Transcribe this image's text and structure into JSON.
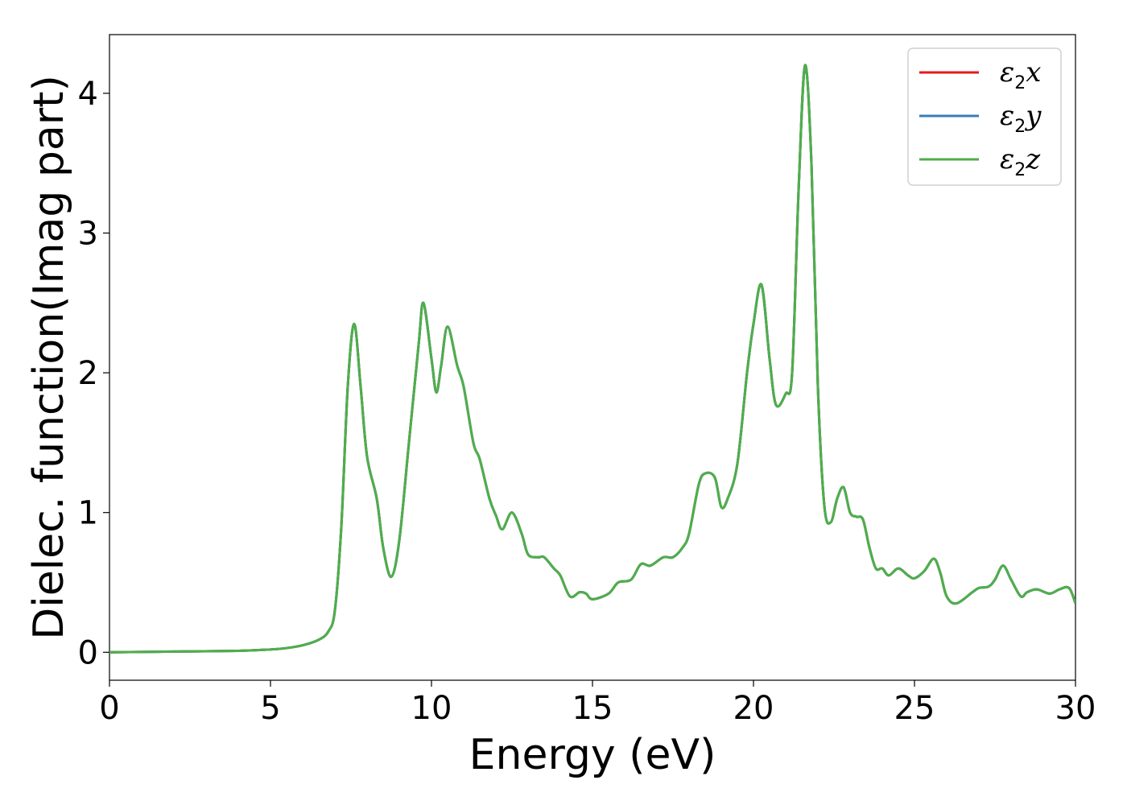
{
  "chart_data": {
    "type": "line",
    "xlabel": "Energy (eV)",
    "ylabel": "Dielec. function(Imag part)",
    "xlim": [
      0,
      30
    ],
    "ylim": [
      -0.2,
      4.42
    ],
    "xticks": [
      0,
      5,
      10,
      15,
      20,
      25,
      30
    ],
    "yticks": [
      0,
      1,
      2,
      3,
      4
    ],
    "grid": false,
    "legend_position": "top-right",
    "series": [
      {
        "name": "ε2x",
        "symbol": "ε",
        "sub": "2",
        "axis": "x",
        "color": "#e41a1c"
      },
      {
        "name": "ε2y",
        "symbol": "ε",
        "sub": "2",
        "axis": "y",
        "color": "#377eb8"
      },
      {
        "name": "ε2z",
        "symbol": "ε",
        "sub": "2",
        "axis": "z",
        "color": "#4daf4a"
      }
    ],
    "x": [
      0,
      2,
      4,
      5,
      5.5,
      6,
      6.5,
      6.8,
      7.0,
      7.2,
      7.4,
      7.6,
      7.8,
      8.0,
      8.3,
      8.5,
      8.75,
      9.0,
      9.3,
      9.6,
      9.75,
      10.0,
      10.15,
      10.3,
      10.5,
      10.8,
      11.0,
      11.3,
      11.5,
      11.8,
      12.0,
      12.2,
      12.5,
      12.8,
      13.0,
      13.3,
      13.5,
      13.8,
      14.0,
      14.3,
      14.6,
      14.8,
      15.0,
      15.5,
      15.8,
      16.2,
      16.5,
      16.8,
      17.2,
      17.5,
      17.8,
      18.0,
      18.3,
      18.5,
      18.8,
      19.0,
      19.2,
      19.5,
      19.8,
      20.0,
      20.25,
      20.5,
      20.7,
      21.0,
      21.2,
      21.4,
      21.6,
      21.8,
      22.0,
      22.2,
      22.4,
      22.6,
      22.8,
      23.0,
      23.2,
      23.4,
      23.6,
      23.8,
      24.0,
      24.2,
      24.5,
      24.8,
      25.0,
      25.3,
      25.6,
      25.8,
      26.0,
      26.3,
      26.8,
      27.0,
      27.3,
      27.5,
      27.75,
      28.0,
      28.3,
      28.5,
      28.8,
      29.2,
      29.5,
      29.8,
      30.0
    ],
    "y": [
      0.0,
      0.005,
      0.01,
      0.02,
      0.03,
      0.05,
      0.09,
      0.15,
      0.3,
      0.9,
      1.9,
      2.35,
      1.9,
      1.4,
      1.1,
      0.75,
      0.54,
      0.8,
      1.5,
      2.2,
      2.5,
      2.1,
      1.86,
      2.05,
      2.33,
      2.05,
      1.9,
      1.5,
      1.38,
      1.1,
      0.98,
      0.88,
      1.0,
      0.85,
      0.7,
      0.68,
      0.68,
      0.6,
      0.55,
      0.4,
      0.43,
      0.42,
      0.38,
      0.42,
      0.5,
      0.52,
      0.63,
      0.62,
      0.68,
      0.68,
      0.75,
      0.85,
      1.2,
      1.28,
      1.25,
      1.04,
      1.1,
      1.35,
      2.0,
      2.35,
      2.63,
      2.1,
      1.77,
      1.85,
      2.0,
      3.3,
      4.2,
      3.5,
      1.9,
      1.05,
      0.93,
      1.1,
      1.18,
      1.0,
      0.97,
      0.95,
      0.75,
      0.6,
      0.6,
      0.55,
      0.6,
      0.55,
      0.53,
      0.58,
      0.67,
      0.57,
      0.4,
      0.35,
      0.43,
      0.46,
      0.47,
      0.52,
      0.62,
      0.52,
      0.4,
      0.43,
      0.45,
      0.42,
      0.45,
      0.46,
      0.35
    ]
  }
}
